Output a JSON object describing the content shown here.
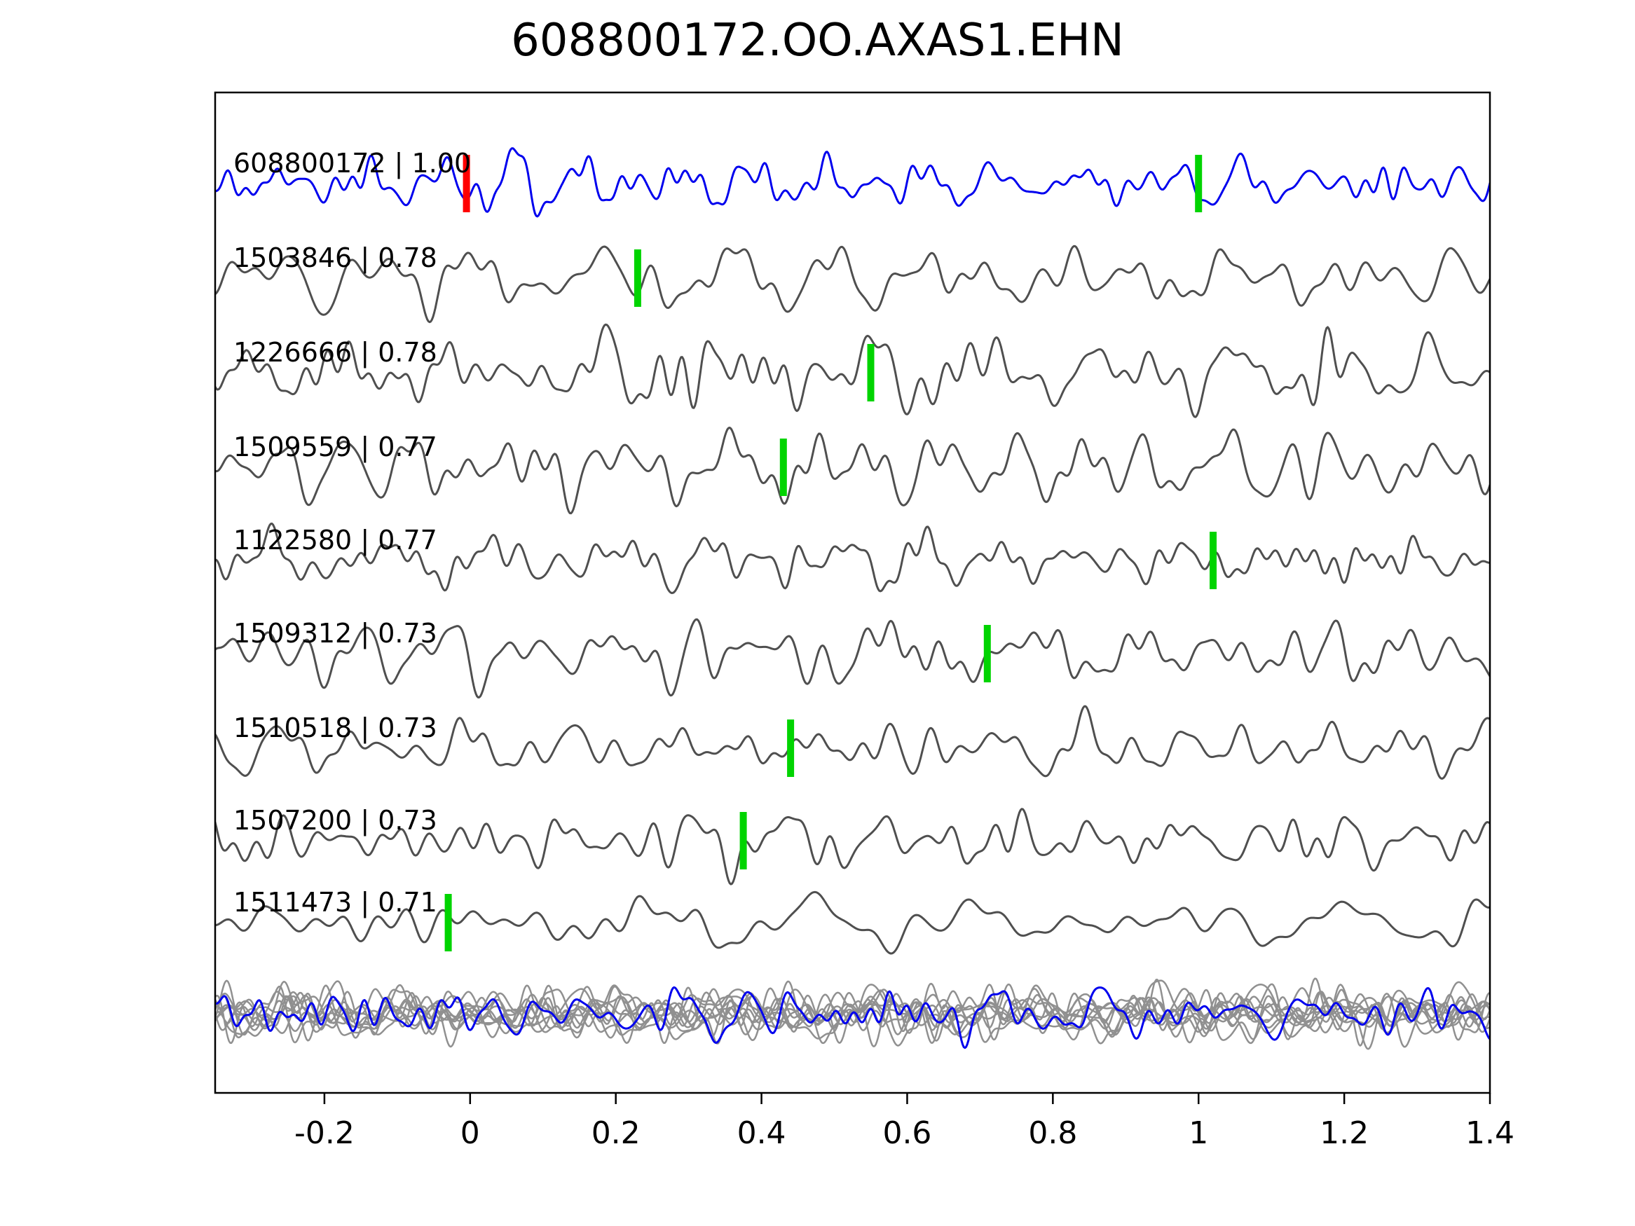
{
  "title": "608800172.OO.AXAS1.EHN",
  "chart_data": {
    "type": "line",
    "title": "608800172.OO.AXAS1.EHN",
    "xlabel": "",
    "ylabel": "",
    "xlim": [
      -0.35,
      1.4
    ],
    "x_ticks": [
      -0.2,
      0,
      0.2,
      0.4,
      0.6,
      0.8,
      1,
      1.2,
      1.4
    ],
    "x_tick_labels": [
      "-0.2",
      "0",
      "0.2",
      "0.4",
      "0.6",
      "0.8",
      "1",
      "1.2",
      "1.4"
    ],
    "grid": false,
    "legend": "none",
    "colors": {
      "template_trace": "#0000ee",
      "candidate_trace": "#4f4f4f",
      "overlay_trace": "#909090",
      "pick_marker": "#00d400",
      "template_marker": "#ff0000",
      "frame": "#000000"
    },
    "traces": [
      {
        "label": "608800172 | 1.00",
        "event_id": "608800172",
        "correlation": 1.0,
        "color": "blue",
        "markers": [
          {
            "x": -0.005,
            "color": "red"
          },
          {
            "x": 1.0,
            "color": "green"
          }
        ]
      },
      {
        "label": "1503846 | 0.78",
        "event_id": "1503846",
        "correlation": 0.78,
        "color": "gray",
        "markers": [
          {
            "x": 0.23,
            "color": "green"
          }
        ]
      },
      {
        "label": "1226666 | 0.78",
        "event_id": "1226666",
        "correlation": 0.78,
        "color": "gray",
        "markers": [
          {
            "x": 0.55,
            "color": "green"
          }
        ]
      },
      {
        "label": "1509559 | 0.77",
        "event_id": "1509559",
        "correlation": 0.77,
        "color": "gray",
        "markers": [
          {
            "x": 0.43,
            "color": "green"
          }
        ]
      },
      {
        "label": "1122580 | 0.77",
        "event_id": "1122580",
        "correlation": 0.77,
        "color": "gray",
        "markers": [
          {
            "x": 1.02,
            "color": "green"
          }
        ]
      },
      {
        "label": "1509312 | 0.73",
        "event_id": "1509312",
        "correlation": 0.73,
        "color": "gray",
        "markers": [
          {
            "x": 0.71,
            "color": "green"
          }
        ]
      },
      {
        "label": "1510518 | 0.73",
        "event_id": "1510518",
        "correlation": 0.73,
        "color": "gray",
        "markers": [
          {
            "x": 0.44,
            "color": "green"
          }
        ]
      },
      {
        "label": "1507200 | 0.73",
        "event_id": "1507200",
        "correlation": 0.73,
        "color": "gray",
        "markers": [
          {
            "x": 0.375,
            "color": "green"
          }
        ]
      },
      {
        "label": "1511473 | 0.71",
        "event_id": "1511473",
        "correlation": 0.71,
        "color": "gray",
        "markers": [
          {
            "x": -0.03,
            "color": "green"
          }
        ]
      }
    ],
    "overlay": {
      "description": "stacked overlay of aligned candidate traces with template",
      "gray_trace_count": 10,
      "has_blue_trace": true
    }
  }
}
